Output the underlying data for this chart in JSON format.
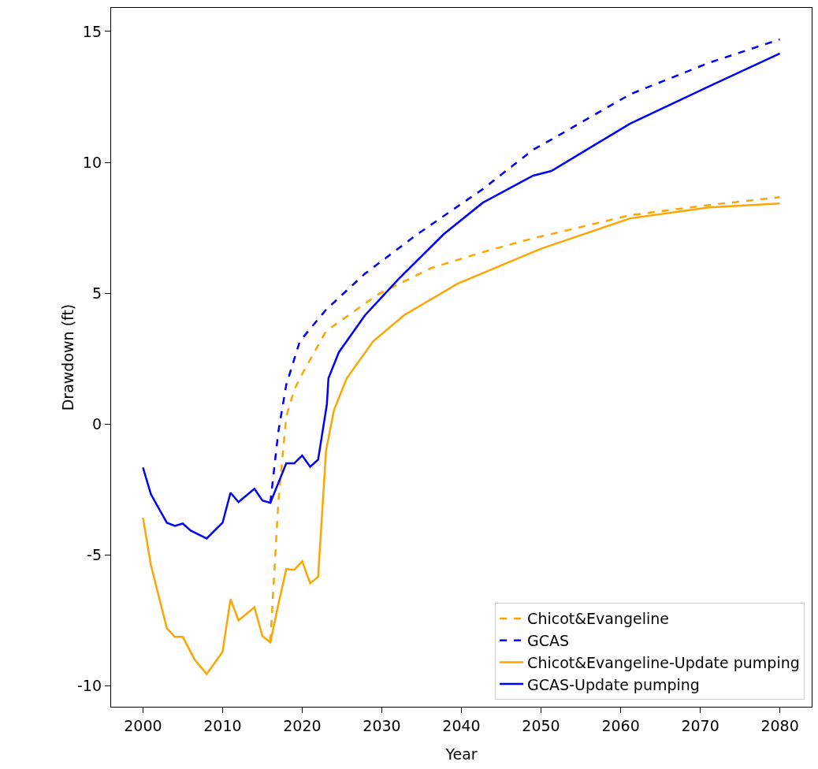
{
  "chart_data": {
    "type": "line",
    "xlabel": "Year",
    "ylabel": "Drawdown (ft)",
    "xlim": [
      1996,
      2084
    ],
    "ylim": [
      -10.8,
      15.9
    ],
    "xticks": [
      2000,
      2010,
      2020,
      2030,
      2040,
      2050,
      2060,
      2070,
      2080
    ],
    "yticks": [
      -10,
      -5,
      0,
      5,
      10,
      15
    ],
    "grid": false,
    "legend": "bottom right",
    "marker": "none",
    "series": [
      {
        "name": "Chicot&Evangeline",
        "color": "#ffa500",
        "line_style": "dashed",
        "x": [
          2016,
          2017,
          2018,
          2019,
          2019.7,
          2023,
          2029.6,
          2036.2,
          2042.7,
          2049,
          2051.3,
          2061.2,
          2071.1,
          2080
        ],
        "values": [
          -8.3,
          -3,
          0.3,
          1.3,
          1.75,
          3.55,
          4.97,
          5.96,
          6.57,
          7.1,
          7.26,
          7.98,
          8.37,
          8.67
        ]
      },
      {
        "name": "GCAS",
        "color": "#0000ff",
        "line_style": "dashed",
        "x": [
          2016,
          2017,
          2018,
          2019.7,
          2023,
          2027.9,
          2034.5,
          2042.7,
          2049,
          2051.3,
          2061.2,
          2071.1,
          2080
        ],
        "values": [
          -3.0,
          -0.3,
          1.5,
          3.16,
          4.37,
          5.75,
          7.26,
          8.98,
          10.48,
          10.87,
          12.6,
          13.8,
          14.7
        ]
      },
      {
        "name": "Chicot&Evangeline-Update pumping",
        "color": "#ffa500",
        "line_style": "solid",
        "x": [
          2000,
          2001,
          2003,
          2004,
          2005,
          2006.5,
          2008,
          2010,
          2011,
          2012,
          2014,
          2015,
          2016,
          2017,
          2018,
          2019,
          2020,
          2021,
          2022,
          2023,
          2024,
          2025.6,
          2028.9,
          2032.8,
          2039.5,
          2050,
          2061.2,
          2071.1,
          2080
        ],
        "values": [
          -3.58,
          -5.39,
          -7.8,
          -8.13,
          -8.13,
          -9.0,
          -9.55,
          -8.7,
          -6.69,
          -7.5,
          -7.0,
          -8.1,
          -8.34,
          -6.9,
          -5.54,
          -5.57,
          -5.24,
          -6.08,
          -5.84,
          -1.0,
          0.54,
          1.75,
          3.16,
          4.16,
          5.36,
          6.7,
          7.86,
          8.28,
          8.43
        ]
      },
      {
        "name": "GCAS-Update pumping",
        "color": "#0000ff",
        "line_style": "solid",
        "x": [
          2000,
          2001,
          2003,
          2004,
          2005,
          2006,
          2008,
          2010,
          2011,
          2012,
          2014,
          2015,
          2016,
          2018,
          2019,
          2020,
          2021,
          2022,
          2023.1,
          2023.3,
          2024.6,
          2027.9,
          2032.2,
          2037.8,
          2042.7,
          2049,
          2051.3,
          2061.2,
          2071.1,
          2080
        ],
        "values": [
          -1.66,
          -2.68,
          -3.77,
          -3.89,
          -3.8,
          -4.07,
          -4.37,
          -3.77,
          -2.62,
          -2.98,
          -2.47,
          -2.92,
          -3.01,
          -1.5,
          -1.5,
          -1.2,
          -1.63,
          -1.36,
          0.75,
          1.75,
          2.74,
          4.16,
          5.57,
          7.26,
          8.46,
          9.49,
          9.67,
          11.48,
          12.9,
          14.16
        ]
      }
    ]
  }
}
